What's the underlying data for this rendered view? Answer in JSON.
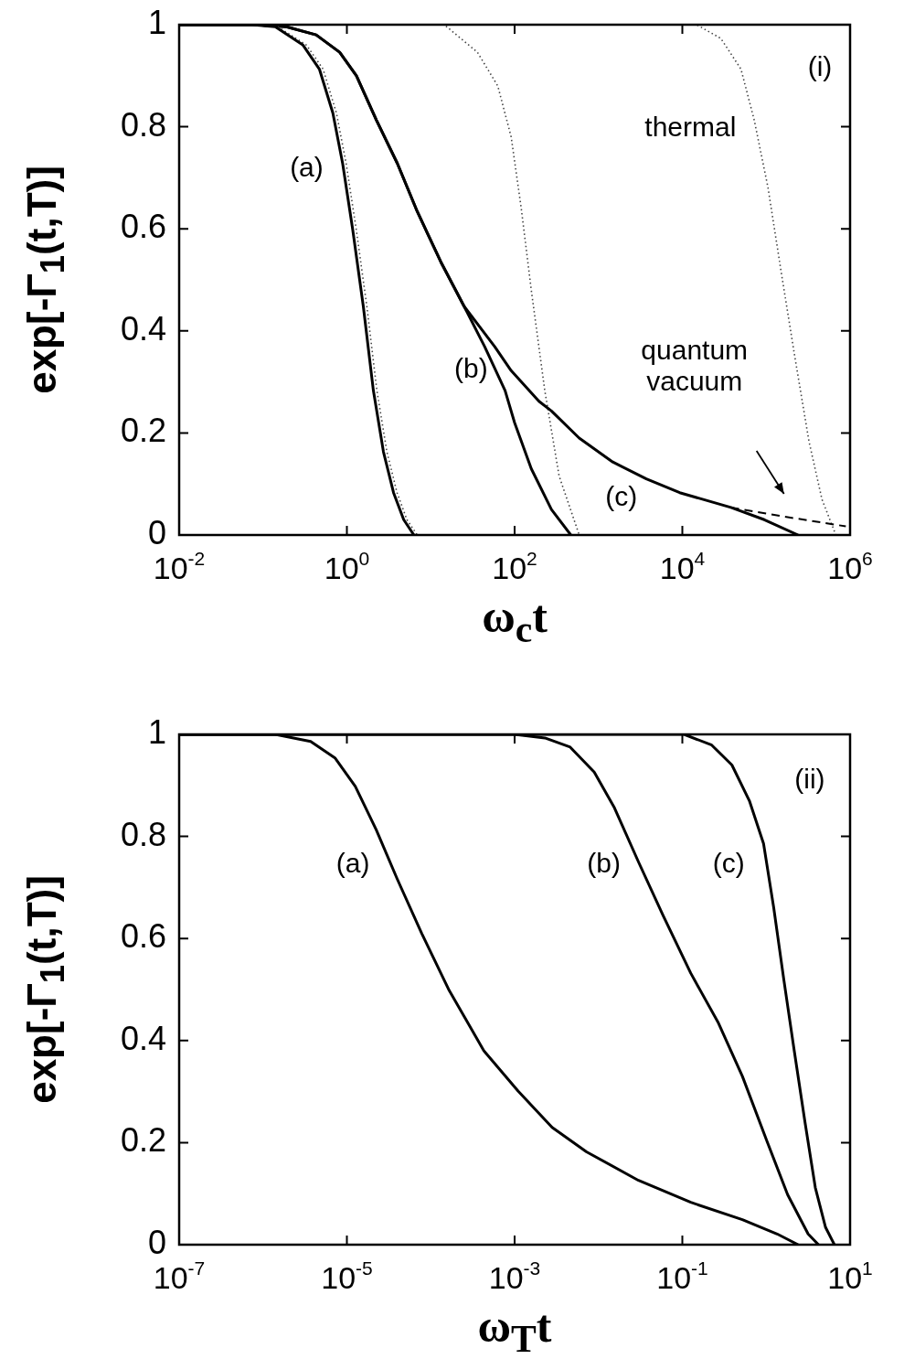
{
  "chart_data": [
    {
      "type": "line",
      "xlabel": "ω$_{c}$t",
      "ylabel": "exp[-Γ$_{1}$(t,T)]",
      "log": "x",
      "grid": false,
      "legend": false,
      "marker": "none",
      "xlim": [
        0.01,
        1000000
      ],
      "xticks": [
        {
          "value": 0.01,
          "label": "10$^{-2}$"
        },
        {
          "value": 1,
          "label": "10$^{0}$"
        },
        {
          "value": 100,
          "label": "10$^{2}$"
        },
        {
          "value": 10000,
          "label": "10$^{4}$"
        },
        {
          "value": 1000000,
          "label": "10$^{6}$"
        }
      ],
      "ylim": [
        0,
        1
      ],
      "yticks": [
        0,
        0.2,
        0.4,
        0.6,
        0.8,
        1
      ],
      "series": [
        {
          "color": "#000000",
          "line_style": "solid",
          "x": [
            0.01,
            0.074,
            0.14,
            0.3,
            0.47,
            0.68,
            0.89,
            1.17,
            1.57,
            2.07,
            2.73,
            3.6,
            4.76,
            6.3
          ],
          "values": [
            1,
            1,
            0.996,
            0.96,
            0.913,
            0.827,
            0.728,
            0.6,
            0.448,
            0.283,
            0.163,
            0.083,
            0.03,
            0
          ]
        },
        {
          "color": "#444444",
          "line_style": "dotted",
          "x": [
            0.01,
            0.08,
            0.15,
            0.33,
            0.52,
            0.75,
            0.98,
            1.29,
            1.73,
            2.28,
            3.0,
            3.96,
            5.2,
            6.9
          ],
          "values": [
            1,
            1,
            0.996,
            0.96,
            0.913,
            0.827,
            0.728,
            0.6,
            0.448,
            0.283,
            0.163,
            0.083,
            0.03,
            0
          ]
        },
        {
          "color": "#000000",
          "line_style": "solid",
          "x": [
            0.01,
            0.08,
            0.19,
            0.43,
            0.82,
            1.3,
            2.25,
            4,
            6.9,
            13.2,
            25,
            44,
            77,
            100,
            158,
            275,
            468
          ],
          "values": [
            1,
            1,
            0.996,
            0.98,
            0.946,
            0.9,
            0.813,
            0.728,
            0.634,
            0.535,
            0.448,
            0.369,
            0.283,
            0.22,
            0.13,
            0.05,
            0
          ]
        },
        {
          "color": "#000000",
          "line_style": "solid",
          "x": [
            0.01,
            0.08,
            0.19,
            0.43,
            0.82,
            1.3,
            2.25,
            4,
            6.9,
            13.2,
            25,
            58,
            91,
            195,
            275,
            589,
            1480,
            3720,
            9300,
            38000,
            95000,
            240000
          ],
          "values": [
            1,
            1,
            0.996,
            0.98,
            0.946,
            0.9,
            0.813,
            0.728,
            0.634,
            0.535,
            0.448,
            0.369,
            0.322,
            0.262,
            0.243,
            0.19,
            0.143,
            0.11,
            0.083,
            0.054,
            0.03,
            0
          ]
        },
        {
          "color": "#000000",
          "line_style": "dashed",
          "x": [
            38000,
            151000,
            890000
          ],
          "values": [
            0.054,
            0.037,
            0.017
          ]
        },
        {
          "color": "#444444",
          "line_style": "dotted",
          "x": [
            0.01,
            14.5,
            36,
            63,
            91,
            120,
            158,
            229,
            339,
            589
          ],
          "values": [
            1,
            1,
            0.946,
            0.88,
            0.78,
            0.64,
            0.48,
            0.283,
            0.116,
            0
          ]
        },
        {
          "color": "#444444",
          "line_style": "dotted",
          "x": [
            0.01,
            14800,
            28800,
            50000,
            72000,
            105000,
            151000,
            219000,
            324000,
            462000,
            617000,
            676000
          ],
          "values": [
            1,
            1,
            0.973,
            0.913,
            0.813,
            0.681,
            0.515,
            0.35,
            0.183,
            0.07,
            0.017,
            0
          ]
        }
      ],
      "annotations": [
        "(a)",
        "(b)",
        "(c)",
        "thermal",
        "quantum\nvacuum",
        "(i)"
      ]
    },
    {
      "type": "line",
      "xlabel": "ω$_{T}$t",
      "ylabel": "exp[-Γ$_{1}$(t,T)]",
      "log": "x",
      "grid": false,
      "legend": false,
      "marker": "none",
      "xlim": [
        1e-07,
        10
      ],
      "xticks": [
        {
          "value": 1e-07,
          "label": "10$^{-7}$"
        },
        {
          "value": 1e-05,
          "label": "10$^{-5}$"
        },
        {
          "value": 0.001,
          "label": "10$^{-3}$"
        },
        {
          "value": 0.1,
          "label": "10$^{-1}$"
        },
        {
          "value": 10,
          "label": "10$^{1}$"
        }
      ],
      "ylim": [
        0,
        1
      ],
      "yticks": [
        0,
        0.2,
        0.4,
        0.6,
        0.8,
        1
      ],
      "series": [
        {
          "color": "#000000",
          "line_style": "solid",
          "x": [
            1e-07,
            1.4e-06,
            3.7e-06,
            7.2e-06,
            1.26e-05,
            2.24e-05,
            4e-05,
            7.8e-05,
            0.000166,
            0.00043,
            0.0011,
            0.0028,
            0.0072,
            0.03,
            0.126,
            0.52,
            1.35,
            2.4
          ],
          "values": [
            1,
            1,
            0.986,
            0.954,
            0.898,
            0.813,
            0.716,
            0.61,
            0.498,
            0.38,
            0.301,
            0.23,
            0.182,
            0.126,
            0.083,
            0.049,
            0.021,
            0
          ]
        },
        {
          "color": "#000000",
          "line_style": "solid",
          "x": [
            1e-07,
            0.001,
            0.0023,
            0.0046,
            0.0089,
            0.0155,
            0.03,
            0.059,
            0.126,
            0.27,
            0.52,
            1.02,
            1.8,
            3.16,
            4.2
          ],
          "values": [
            1,
            1,
            0.993,
            0.975,
            0.926,
            0.856,
            0.75,
            0.645,
            0.532,
            0.434,
            0.33,
            0.203,
            0.098,
            0.021,
            0
          ]
        },
        {
          "color": "#000000",
          "line_style": "solid",
          "x": [
            1e-07,
            0.105,
            0.224,
            0.39,
            0.63,
            0.93,
            1.23,
            1.62,
            2.16,
            2.9,
            3.85,
            5.1,
            6.5
          ],
          "values": [
            1,
            1,
            0.979,
            0.94,
            0.87,
            0.786,
            0.66,
            0.52,
            0.38,
            0.24,
            0.112,
            0.034,
            0
          ]
        }
      ],
      "annotations": [
        "(a)",
        "(b)",
        "(c)",
        "(ii)"
      ]
    }
  ]
}
